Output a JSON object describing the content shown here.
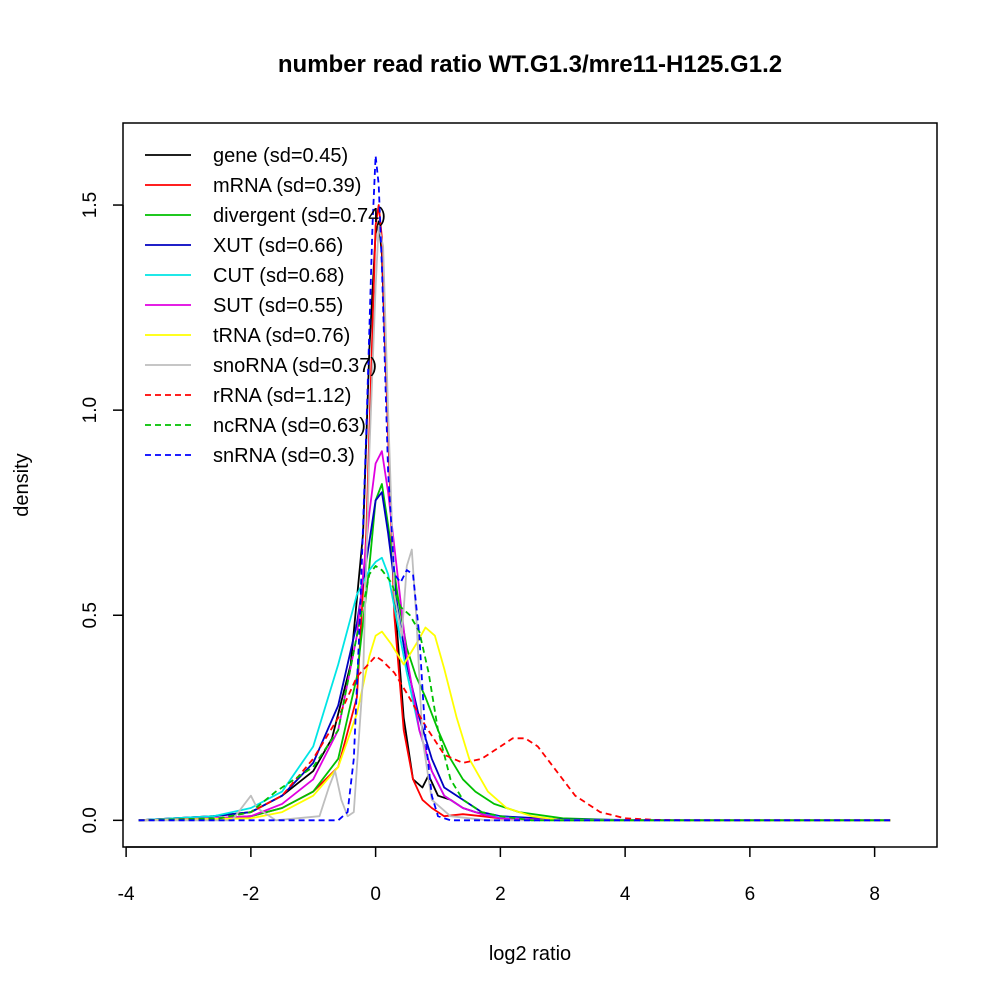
{
  "chart_data": {
    "type": "line",
    "title": "number read ratio WT.G1.3/mre11-H125.G1.2",
    "xlabel": "log2 ratio",
    "ylabel": "density",
    "xlim": [
      -4.05,
      9.0
    ],
    "ylim": [
      -0.065,
      1.7
    ],
    "xticks": [
      -4,
      -2,
      0,
      2,
      4,
      6,
      8
    ],
    "xtick_labels": [
      "-4",
      "-2",
      "0",
      "2",
      "4",
      "6",
      "8"
    ],
    "yticks": [
      0.0,
      0.5,
      1.0,
      1.5
    ],
    "ytick_labels": [
      "0.0",
      "0.5",
      "1.0",
      "1.5"
    ],
    "legend_position": "top-left",
    "grid": false,
    "series": [
      {
        "name": "gene",
        "label": "gene (sd=0.45)",
        "color": "#000000",
        "dash": "solid",
        "x": [
          -3.8,
          -2.6,
          -2.0,
          -1.5,
          -1.0,
          -0.7,
          -0.4,
          -0.2,
          -0.1,
          0.0,
          0.05,
          0.1,
          0.2,
          0.3,
          0.45,
          0.6,
          0.75,
          0.85,
          1.0,
          1.2,
          1.4,
          1.6,
          1.9,
          2.3,
          3.0,
          4.0,
          6.0,
          8.25
        ],
        "y": [
          0.0,
          0.01,
          0.02,
          0.06,
          0.12,
          0.2,
          0.38,
          0.7,
          1.15,
          1.43,
          1.46,
          1.38,
          0.95,
          0.55,
          0.25,
          0.1,
          0.08,
          0.11,
          0.06,
          0.05,
          0.03,
          0.02,
          0.01,
          0.005,
          0.0,
          0.0,
          0.0,
          0.0
        ]
      },
      {
        "name": "mRNA",
        "label": "mRNA (sd=0.39)",
        "color": "#ff0000",
        "dash": "solid",
        "x": [
          -3.8,
          -2.5,
          -2.0,
          -1.5,
          -1.0,
          -0.6,
          -0.3,
          -0.15,
          -0.05,
          0.0,
          0.05,
          0.1,
          0.2,
          0.3,
          0.45,
          0.6,
          0.75,
          0.9,
          1.1,
          1.4,
          1.7,
          2.0,
          3.0,
          8.25
        ],
        "y": [
          0.0,
          0.005,
          0.01,
          0.03,
          0.07,
          0.13,
          0.3,
          0.7,
          1.2,
          1.45,
          1.5,
          1.42,
          0.95,
          0.5,
          0.22,
          0.1,
          0.05,
          0.03,
          0.01,
          0.015,
          0.01,
          0.005,
          0.0,
          0.0
        ]
      },
      {
        "name": "divergent",
        "label": "divergent (sd=0.74)",
        "color": "#00c000",
        "dash": "solid",
        "x": [
          -3.8,
          -2.5,
          -2.0,
          -1.5,
          -1.0,
          -0.6,
          -0.3,
          -0.1,
          0.0,
          0.1,
          0.2,
          0.35,
          0.5,
          0.65,
          0.8,
          1.0,
          1.2,
          1.4,
          1.6,
          1.9,
          2.3,
          3.0,
          4.0,
          8.25
        ],
        "y": [
          0.0,
          0.005,
          0.01,
          0.03,
          0.07,
          0.15,
          0.35,
          0.62,
          0.78,
          0.82,
          0.72,
          0.55,
          0.42,
          0.35,
          0.3,
          0.22,
          0.15,
          0.1,
          0.07,
          0.04,
          0.02,
          0.005,
          0.0,
          0.0
        ]
      },
      {
        "name": "XUT",
        "label": "XUT (sd=0.66)",
        "color": "#0000c0",
        "dash": "solid",
        "x": [
          -3.8,
          -2.6,
          -2.0,
          -1.5,
          -1.0,
          -0.6,
          -0.3,
          -0.1,
          0.0,
          0.1,
          0.2,
          0.35,
          0.5,
          0.7,
          0.9,
          1.1,
          1.4,
          1.7,
          2.0,
          3.0,
          5.5,
          8.25
        ],
        "y": [
          0.0,
          0.01,
          0.02,
          0.06,
          0.14,
          0.28,
          0.48,
          0.68,
          0.78,
          0.8,
          0.7,
          0.52,
          0.38,
          0.25,
          0.15,
          0.08,
          0.05,
          0.02,
          0.01,
          0.002,
          0.0,
          0.0
        ]
      },
      {
        "name": "CUT",
        "label": "CUT (sd=0.68)",
        "color": "#00e5e5",
        "dash": "solid",
        "x": [
          -3.8,
          -2.6,
          -2.0,
          -1.5,
          -1.0,
          -0.6,
          -0.3,
          -0.1,
          0.0,
          0.1,
          0.2,
          0.35,
          0.5,
          0.7,
          0.9,
          1.1,
          1.4,
          1.7,
          2.0,
          2.5,
          3.0,
          8.25
        ],
        "y": [
          0.0,
          0.01,
          0.03,
          0.07,
          0.18,
          0.38,
          0.55,
          0.61,
          0.63,
          0.64,
          0.6,
          0.48,
          0.36,
          0.22,
          0.12,
          0.06,
          0.03,
          0.015,
          0.008,
          0.002,
          0.0,
          0.0
        ]
      },
      {
        "name": "SUT",
        "label": "SUT (sd=0.55)",
        "color": "#e000e0",
        "dash": "solid",
        "x": [
          -3.8,
          -2.6,
          -2.0,
          -1.5,
          -1.0,
          -0.6,
          -0.3,
          -0.1,
          0.0,
          0.1,
          0.2,
          0.35,
          0.5,
          0.7,
          0.9,
          1.1,
          1.4,
          1.7,
          2.0,
          3.0,
          8.25
        ],
        "y": [
          0.0,
          0.005,
          0.01,
          0.04,
          0.1,
          0.22,
          0.45,
          0.75,
          0.87,
          0.9,
          0.8,
          0.6,
          0.4,
          0.22,
          0.12,
          0.06,
          0.03,
          0.015,
          0.005,
          0.0,
          0.0
        ]
      },
      {
        "name": "tRNA",
        "label": "tRNA (sd=0.76)",
        "color": "#ffff00",
        "dash": "solid",
        "x": [
          -3.8,
          -2.0,
          -1.5,
          -1.0,
          -0.6,
          -0.3,
          -0.1,
          0.0,
          0.1,
          0.25,
          0.45,
          0.65,
          0.8,
          0.95,
          1.1,
          1.3,
          1.5,
          1.8,
          2.1,
          2.5,
          3.0,
          8.25
        ],
        "y": [
          0.0,
          0.005,
          0.02,
          0.06,
          0.13,
          0.26,
          0.4,
          0.45,
          0.46,
          0.43,
          0.38,
          0.43,
          0.47,
          0.45,
          0.37,
          0.25,
          0.15,
          0.07,
          0.03,
          0.01,
          0.0,
          0.0
        ]
      },
      {
        "name": "snoRNA",
        "label": "snoRNA (sd=0.37)",
        "color": "#bebebe",
        "dash": "solid",
        "x": [
          -3.8,
          -2.3,
          -2.1,
          -2.0,
          -1.9,
          -1.6,
          -0.9,
          -0.75,
          -0.65,
          -0.55,
          -0.45,
          -0.35,
          -0.2,
          -0.1,
          0.0,
          0.05,
          0.12,
          0.2,
          0.3,
          0.42,
          0.5,
          0.58,
          0.65,
          0.75,
          0.9,
          1.2,
          1.8,
          8.25
        ],
        "y": [
          0.0,
          0.0,
          0.04,
          0.06,
          0.03,
          0.0,
          0.01,
          0.08,
          0.12,
          0.05,
          0.01,
          0.02,
          0.35,
          0.9,
          1.3,
          1.45,
          1.4,
          1.0,
          0.55,
          0.45,
          0.62,
          0.66,
          0.5,
          0.2,
          0.05,
          0.01,
          0.0,
          0.0
        ]
      },
      {
        "name": "rRNA",
        "label": "rRNA (sd=1.12)",
        "color": "#ff0000",
        "dash": "dashed",
        "x": [
          -3.8,
          -2.5,
          -2.0,
          -1.5,
          -1.0,
          -0.6,
          -0.3,
          0.0,
          0.1,
          0.3,
          0.5,
          0.8,
          1.1,
          1.4,
          1.7,
          2.0,
          2.2,
          2.4,
          2.6,
          2.9,
          3.2,
          3.6,
          4.0,
          4.5,
          5.0,
          8.25
        ],
        "y": [
          0.0,
          0.005,
          0.02,
          0.06,
          0.15,
          0.25,
          0.35,
          0.4,
          0.39,
          0.36,
          0.31,
          0.23,
          0.16,
          0.14,
          0.15,
          0.18,
          0.2,
          0.2,
          0.18,
          0.12,
          0.06,
          0.02,
          0.005,
          0.001,
          0.0,
          0.0
        ]
      },
      {
        "name": "ncRNA",
        "label": "ncRNA (sd=0.63)",
        "color": "#00c000",
        "dash": "dashed",
        "x": [
          -3.8,
          -2.5,
          -2.0,
          -1.6,
          -1.3,
          -1.0,
          -0.6,
          -0.3,
          -0.1,
          0.0,
          0.1,
          0.25,
          0.4,
          0.55,
          0.7,
          0.85,
          1.0,
          1.2,
          1.4,
          1.7,
          2.0,
          2.5,
          8.25
        ],
        "y": [
          0.0,
          0.005,
          0.02,
          0.07,
          0.1,
          0.13,
          0.22,
          0.45,
          0.6,
          0.62,
          0.61,
          0.58,
          0.52,
          0.5,
          0.46,
          0.36,
          0.22,
          0.1,
          0.05,
          0.02,
          0.01,
          0.0,
          0.0
        ]
      },
      {
        "name": "snRNA",
        "label": "snRNA (sd=0.3)",
        "color": "#0000ff",
        "dash": "dashed",
        "x": [
          -3.8,
          -0.6,
          -0.45,
          -0.35,
          -0.25,
          -0.15,
          -0.05,
          0.0,
          0.05,
          0.1,
          0.15,
          0.2,
          0.3,
          0.4,
          0.5,
          0.6,
          0.7,
          0.8,
          0.9,
          1.0,
          1.2,
          8.25
        ],
        "y": [
          0.0,
          0.0,
          0.02,
          0.15,
          0.5,
          0.95,
          1.45,
          1.62,
          1.55,
          1.35,
          1.1,
          0.85,
          0.6,
          0.58,
          0.61,
          0.6,
          0.45,
          0.2,
          0.06,
          0.01,
          0.0,
          0.0
        ]
      }
    ]
  }
}
